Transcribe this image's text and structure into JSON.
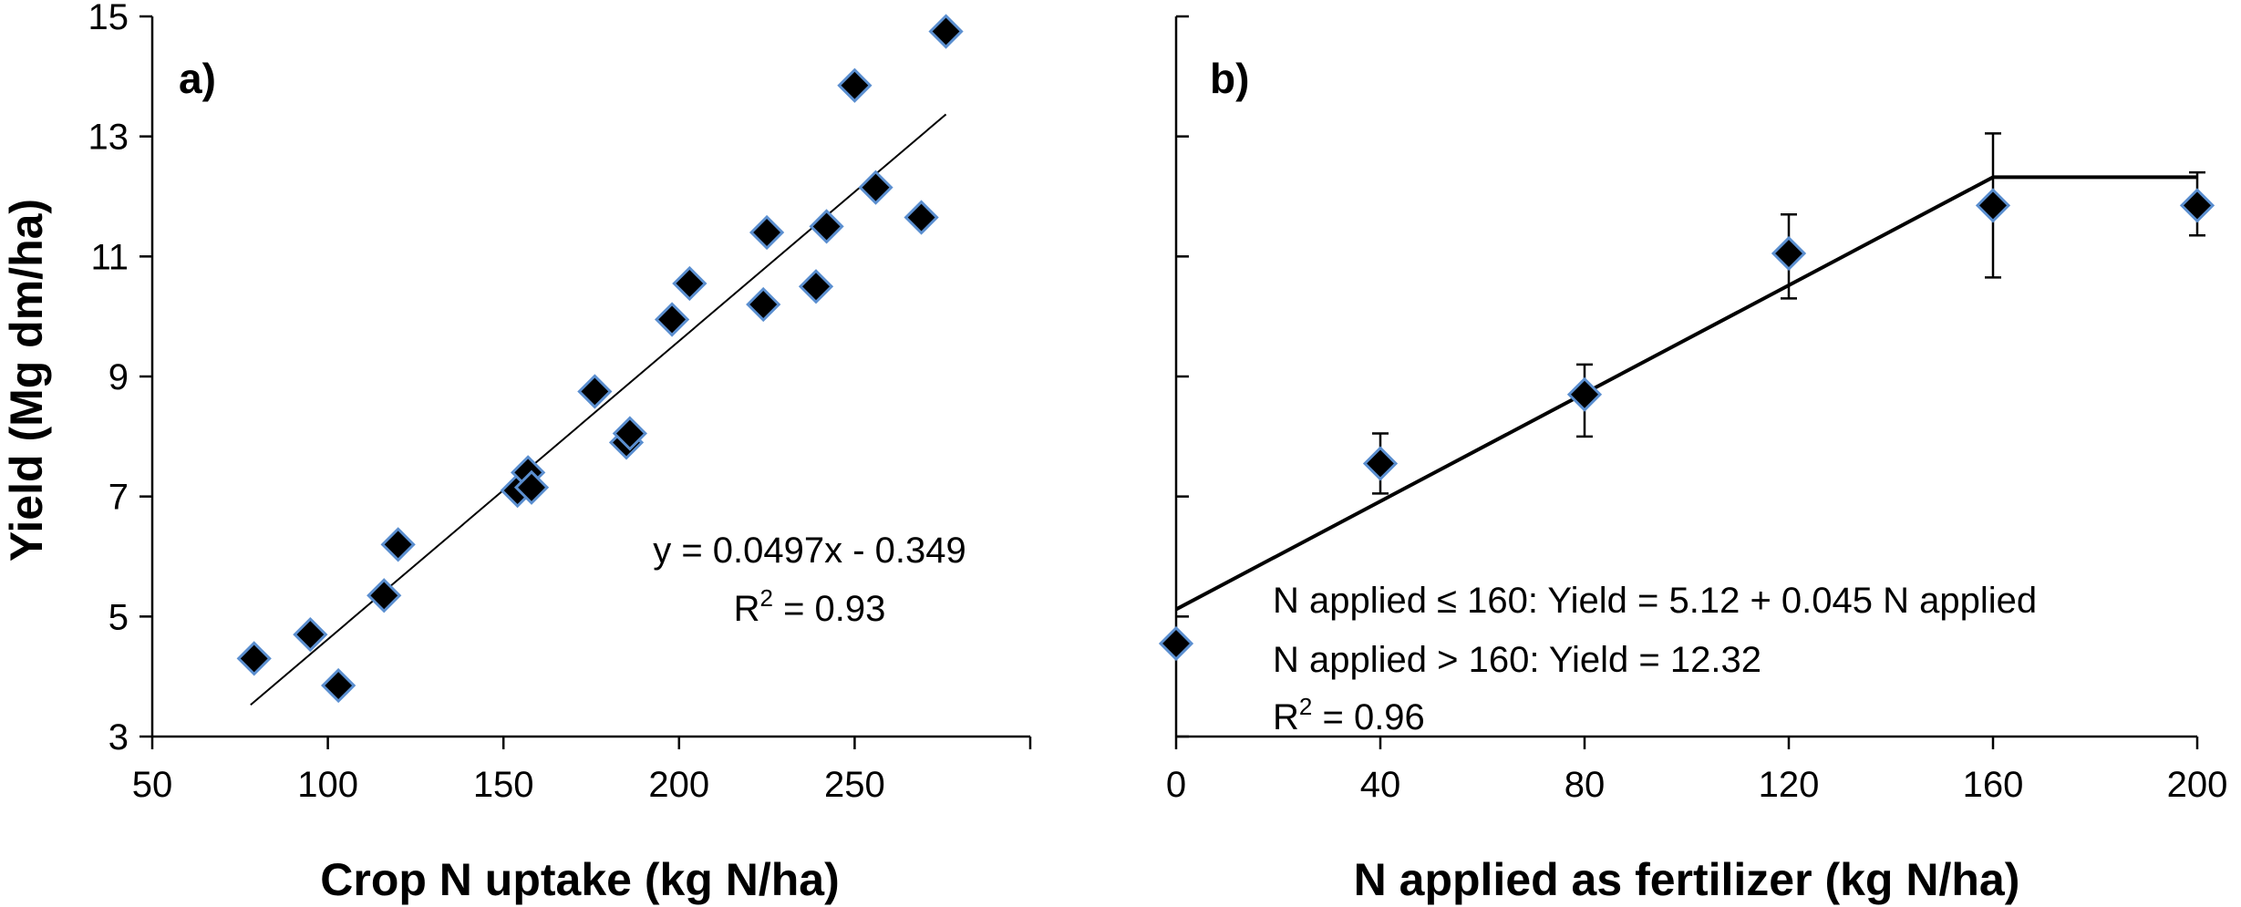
{
  "chart_data": [
    {
      "type": "scatter",
      "panel_label": "a)",
      "title": "",
      "xlabel": "Crop N uptake (kg N/ha)",
      "ylabel": "Yield (Mg dm/ha)",
      "xlim": [
        50,
        300
      ],
      "ylim": [
        3,
        15
      ],
      "xticks": [
        50,
        100,
        150,
        200,
        250
      ],
      "yticks": [
        3,
        5,
        7,
        9,
        11,
        13,
        15
      ],
      "grid": false,
      "legend": "none",
      "marker": "diamond",
      "marker_color": "#000000",
      "marker_edge_color": "#5b8fd0",
      "points": [
        {
          "x": 79,
          "y": 4.3
        },
        {
          "x": 95,
          "y": 4.7
        },
        {
          "x": 103,
          "y": 3.85
        },
        {
          "x": 116,
          "y": 5.35
        },
        {
          "x": 120,
          "y": 6.2
        },
        {
          "x": 154,
          "y": 7.1
        },
        {
          "x": 157,
          "y": 7.4
        },
        {
          "x": 158,
          "y": 7.15
        },
        {
          "x": 176,
          "y": 8.75
        },
        {
          "x": 185,
          "y": 7.9
        },
        {
          "x": 186,
          "y": 8.05
        },
        {
          "x": 198,
          "y": 9.95
        },
        {
          "x": 203,
          "y": 10.55
        },
        {
          "x": 224,
          "y": 10.2
        },
        {
          "x": 225,
          "y": 11.4
        },
        {
          "x": 239,
          "y": 10.5
        },
        {
          "x": 242,
          "y": 11.5
        },
        {
          "x": 250,
          "y": 13.85
        },
        {
          "x": 256,
          "y": 12.15
        },
        {
          "x": 269,
          "y": 11.65
        },
        {
          "x": 276,
          "y": 14.75
        }
      ],
      "trendline": {
        "slope": 0.0497,
        "intercept": -0.349,
        "x_range": [
          78,
          276
        ]
      },
      "equation": "y = 0.0497x - 0.349",
      "r2_prefix": "R",
      "r2_sup": "2",
      "r2_value": " = 0.93"
    },
    {
      "type": "scatter",
      "panel_label": "b)",
      "title": "",
      "xlabel": "N applied as fertilizer (kg N/ha)",
      "ylabel": "",
      "xlim": [
        0,
        200
      ],
      "ylim": [
        3,
        15
      ],
      "xticks": [
        0,
        40,
        80,
        120,
        160,
        200
      ],
      "yticks": [
        3,
        5,
        7,
        9,
        11,
        13,
        15
      ],
      "grid": false,
      "legend": "none",
      "marker": "diamond",
      "marker_color": "#000000",
      "marker_edge_color": "#5b8fd0",
      "points": [
        {
          "x": 0,
          "y": 4.55,
          "err_low": 4.45,
          "err_high": 4.6
        },
        {
          "x": 40,
          "y": 7.55,
          "err_low": 7.05,
          "err_high": 8.05
        },
        {
          "x": 80,
          "y": 8.7,
          "err_low": 8.0,
          "err_high": 9.2
        },
        {
          "x": 120,
          "y": 11.05,
          "err_low": 10.3,
          "err_high": 11.7
        },
        {
          "x": 160,
          "y": 11.85,
          "err_low": 10.65,
          "err_high": 13.05
        },
        {
          "x": 200,
          "y": 11.85,
          "err_low": 11.35,
          "err_high": 12.4
        }
      ],
      "fit": {
        "breakpoint": 160,
        "intercept": 5.12,
        "slope": 0.045,
        "plateau": 12.32
      },
      "annotations": [
        "N applied ≤ 160:  Yield = 5.12 + 0.045 N applied",
        "N applied > 160:  Yield = 12.32"
      ],
      "r2_prefix": "R",
      "r2_sup": "2",
      "r2_value": " = 0.96"
    }
  ]
}
